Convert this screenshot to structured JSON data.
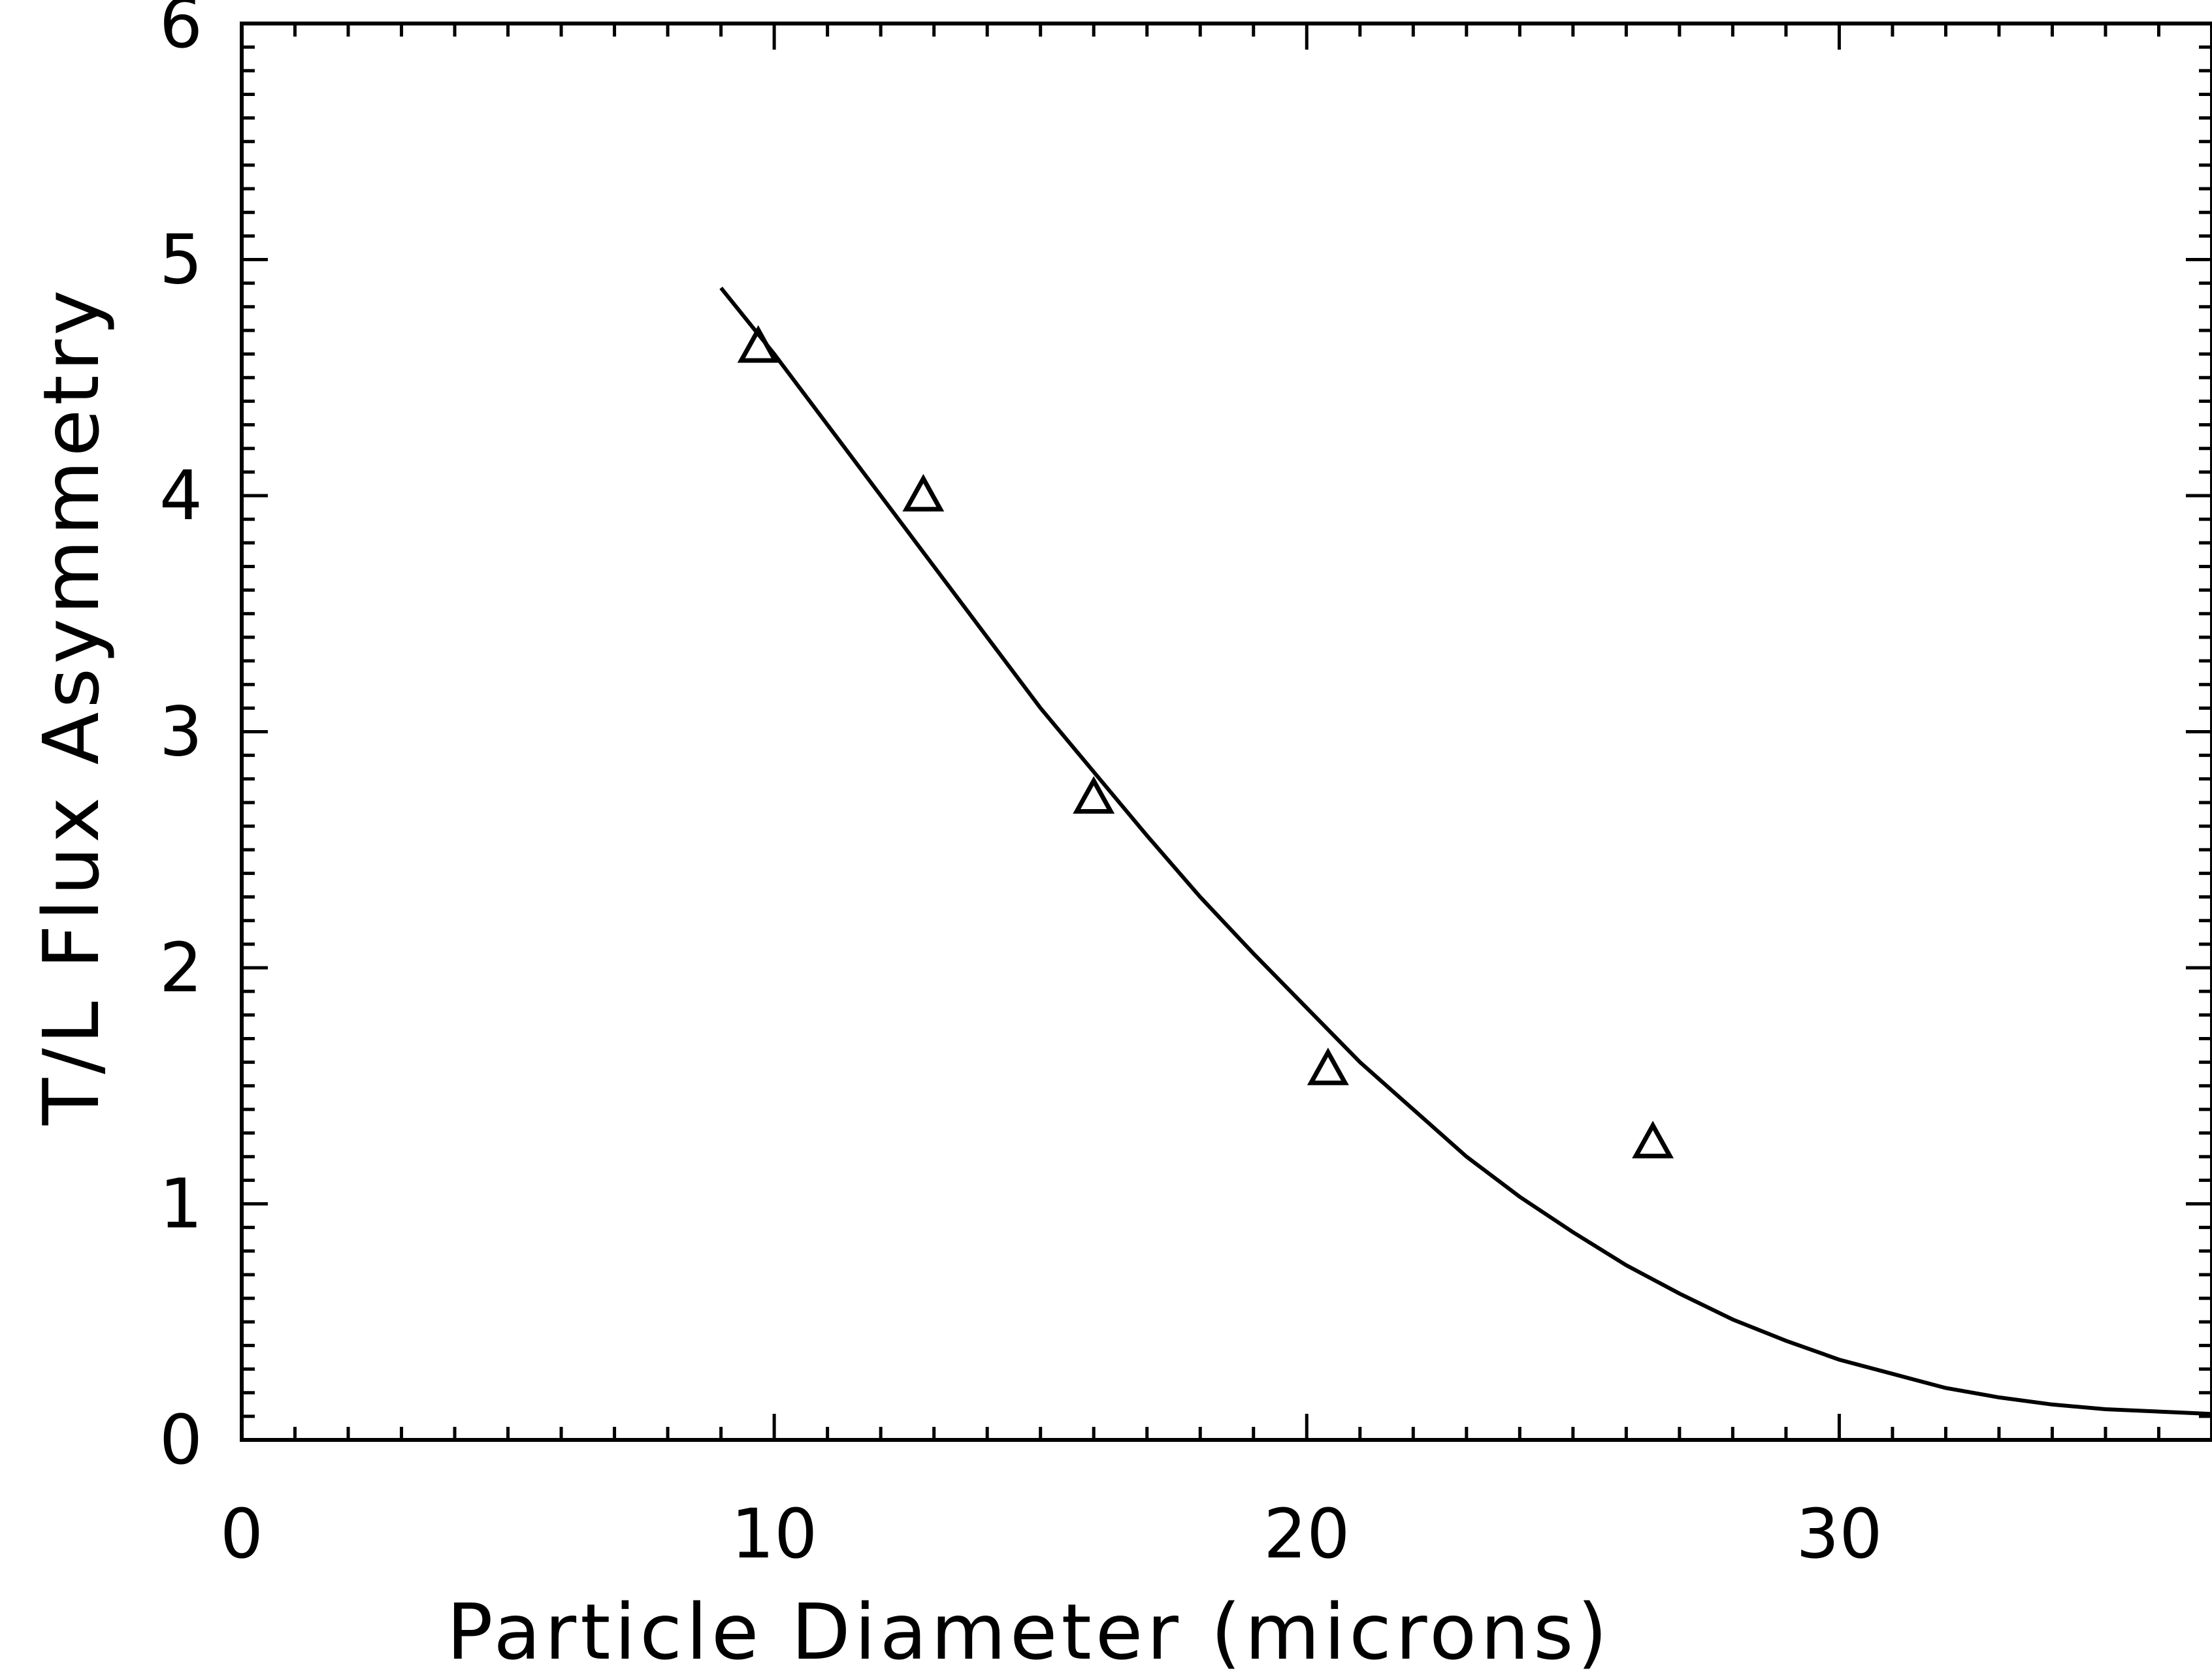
{
  "chart_data": {
    "type": "scatter",
    "xlabel": "Particle Diameter (microns)",
    "ylabel": "T/L Flux Asymmetry",
    "xlim": [
      0,
      37
    ],
    "ylim": [
      0,
      6
    ],
    "x_major_ticks": [
      0,
      10,
      20,
      30
    ],
    "x_tick_labels": [
      "0",
      "10",
      "20",
      "30"
    ],
    "y_major_ticks": [
      0,
      1,
      2,
      3,
      4,
      5,
      6
    ],
    "y_tick_labels": [
      "0",
      "1",
      "2",
      "3",
      "4",
      "5",
      "6"
    ],
    "x_minor_step": 1,
    "y_minor_step": 0.1,
    "grid": false,
    "series": [
      {
        "type": "scatter",
        "marker": "triangle",
        "x": [
          9.7,
          12.8,
          16.0,
          20.4,
          26.5
        ],
        "y": [
          4.63,
          4.0,
          2.72,
          1.57,
          1.26
        ]
      },
      {
        "type": "line",
        "x": [
          9.0,
          10,
          11,
          12,
          13,
          14,
          15,
          16,
          17,
          18,
          19,
          20,
          21,
          22,
          23,
          24,
          25,
          26,
          27,
          28,
          29,
          30,
          31,
          32,
          33,
          34,
          35,
          36,
          37
        ],
        "y": [
          4.88,
          4.6,
          4.3,
          4.0,
          3.7,
          3.4,
          3.1,
          2.83,
          2.56,
          2.3,
          2.06,
          1.83,
          1.6,
          1.4,
          1.2,
          1.03,
          0.88,
          0.74,
          0.62,
          0.51,
          0.42,
          0.34,
          0.28,
          0.22,
          0.18,
          0.15,
          0.13,
          0.12,
          0.11
        ]
      }
    ],
    "colors": {
      "axis": "#000000",
      "line": "#000000",
      "marker": "#000000"
    }
  }
}
